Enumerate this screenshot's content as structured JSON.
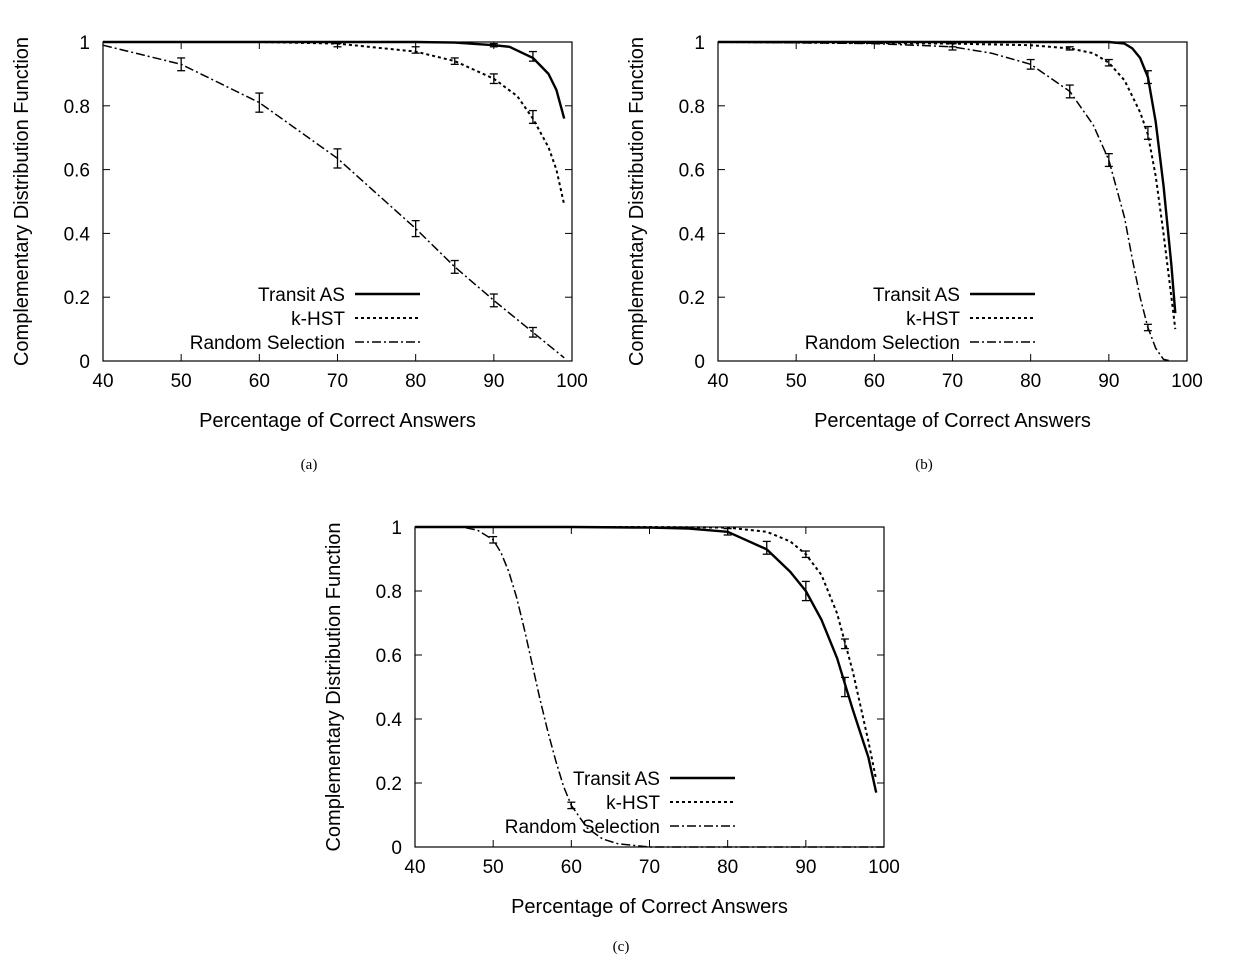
{
  "chart_data": [
    {
      "type": "line",
      "caption": "(a)",
      "xlabel": "Percentage of Correct Answers",
      "ylabel": "Complementary Distribution Function",
      "xlim": [
        40,
        100
      ],
      "ylim": [
        0,
        1
      ],
      "x_ticks": [
        "40",
        "50",
        "60",
        "70",
        "80",
        "90",
        "100"
      ],
      "y_ticks": [
        "0",
        "0.2",
        "0.4",
        "0.6",
        "0.8",
        "1"
      ],
      "grid": false,
      "legend_position": "bottom-right",
      "series": [
        {
          "name": "Transit AS",
          "style": "solid",
          "x": [
            40,
            60,
            80,
            85,
            90,
            92,
            95,
            97,
            98,
            99
          ],
          "y": [
            1,
            1,
            1,
            0.998,
            0.99,
            0.985,
            0.95,
            0.9,
            0.85,
            0.76
          ],
          "errorbars": [
            {
              "x": 90,
              "y": 0.99,
              "err": 0.005
            },
            {
              "x": 95,
              "y": 0.955,
              "err": 0.015
            }
          ]
        },
        {
          "name": "k-HST",
          "style": "dotted",
          "x": [
            40,
            60,
            70,
            80,
            85,
            90,
            93,
            95,
            97,
            98,
            99
          ],
          "y": [
            1,
            1,
            0.995,
            0.97,
            0.94,
            0.885,
            0.83,
            0.76,
            0.67,
            0.6,
            0.49
          ],
          "errorbars": [
            {
              "x": 70,
              "y": 0.99,
              "err": 0.005
            },
            {
              "x": 80,
              "y": 0.975,
              "err": 0.01
            },
            {
              "x": 85,
              "y": 0.94,
              "err": 0.01
            },
            {
              "x": 90,
              "y": 0.885,
              "err": 0.015
            },
            {
              "x": 95,
              "y": 0.765,
              "err": 0.02
            }
          ]
        },
        {
          "name": "Random Selection",
          "style": "dashdot",
          "x": [
            40,
            50,
            60,
            70,
            80,
            85,
            90,
            95,
            99
          ],
          "y": [
            0.99,
            0.93,
            0.81,
            0.635,
            0.415,
            0.295,
            0.19,
            0.09,
            0.01
          ],
          "errorbars": [
            {
              "x": 50,
              "y": 0.93,
              "err": 0.02
            },
            {
              "x": 60,
              "y": 0.81,
              "err": 0.03
            },
            {
              "x": 70,
              "y": 0.635,
              "err": 0.03
            },
            {
              "x": 80,
              "y": 0.415,
              "err": 0.025
            },
            {
              "x": 85,
              "y": 0.295,
              "err": 0.02
            },
            {
              "x": 90,
              "y": 0.19,
              "err": 0.02
            },
            {
              "x": 95,
              "y": 0.09,
              "err": 0.015
            }
          ]
        }
      ]
    },
    {
      "type": "line",
      "caption": "(b)",
      "xlabel": "Percentage of Correct Answers",
      "ylabel": "Complementary Distribution Function",
      "xlim": [
        40,
        100
      ],
      "ylim": [
        0,
        1
      ],
      "x_ticks": [
        "40",
        "50",
        "60",
        "70",
        "80",
        "90",
        "100"
      ],
      "y_ticks": [
        "0",
        "0.2",
        "0.4",
        "0.6",
        "0.8",
        "1"
      ],
      "grid": false,
      "legend_position": "bottom-right",
      "series": [
        {
          "name": "Transit AS",
          "style": "solid",
          "x": [
            40,
            80,
            90,
            92,
            93,
            94,
            95,
            96,
            97,
            98,
            98.5
          ],
          "y": [
            1,
            1,
            1,
            0.995,
            0.98,
            0.95,
            0.89,
            0.75,
            0.55,
            0.3,
            0.15
          ],
          "errorbars": [
            {
              "x": 95,
              "y": 0.89,
              "err": 0.02
            }
          ]
        },
        {
          "name": "k-HST",
          "style": "dotted",
          "x": [
            40,
            70,
            80,
            85,
            88,
            90,
            92,
            93,
            94,
            95,
            96,
            97,
            98,
            98.5
          ],
          "y": [
            1,
            0.995,
            0.99,
            0.98,
            0.965,
            0.935,
            0.88,
            0.83,
            0.78,
            0.71,
            0.58,
            0.4,
            0.2,
            0.1
          ],
          "errorbars": [
            {
              "x": 70,
              "y": 0.99,
              "err": 0.005
            },
            {
              "x": 85,
              "y": 0.98,
              "err": 0.005
            },
            {
              "x": 90,
              "y": 0.935,
              "err": 0.01
            },
            {
              "x": 95,
              "y": 0.715,
              "err": 0.02
            }
          ]
        },
        {
          "name": "Random Selection",
          "style": "dashdot",
          "x": [
            40,
            60,
            70,
            75,
            80,
            85,
            88,
            90,
            92,
            93,
            94,
            95,
            96,
            97,
            98
          ],
          "y": [
            1,
            0.995,
            0.985,
            0.965,
            0.93,
            0.845,
            0.74,
            0.63,
            0.45,
            0.32,
            0.2,
            0.105,
            0.04,
            0.005,
            0
          ],
          "errorbars": [
            {
              "x": 70,
              "y": 0.985,
              "err": 0.01
            },
            {
              "x": 80,
              "y": 0.93,
              "err": 0.015
            },
            {
              "x": 85,
              "y": 0.845,
              "err": 0.02
            },
            {
              "x": 90,
              "y": 0.63,
              "err": 0.02
            },
            {
              "x": 95,
              "y": 0.105,
              "err": 0.01
            }
          ]
        }
      ]
    },
    {
      "type": "line",
      "caption": "(c)",
      "xlabel": "Percentage of Correct Answers",
      "ylabel": "Complementary Distribution Function",
      "xlim": [
        40,
        100
      ],
      "ylim": [
        0,
        1
      ],
      "x_ticks": [
        "40",
        "50",
        "60",
        "70",
        "80",
        "90",
        "100"
      ],
      "y_ticks": [
        "0",
        "0.2",
        "0.4",
        "0.6",
        "0.8",
        "1"
      ],
      "grid": false,
      "legend_position": "bottom-center",
      "series": [
        {
          "name": "Transit AS",
          "style": "solid",
          "x": [
            40,
            60,
            70,
            75,
            80,
            85,
            88,
            90,
            92,
            94,
            95,
            96,
            98,
            99
          ],
          "y": [
            1,
            1,
            0.998,
            0.995,
            0.985,
            0.93,
            0.86,
            0.8,
            0.71,
            0.59,
            0.51,
            0.43,
            0.28,
            0.17
          ],
          "errorbars": [
            {
              "x": 80,
              "y": 0.985,
              "err": 0.01
            },
            {
              "x": 85,
              "y": 0.935,
              "err": 0.02
            },
            {
              "x": 90,
              "y": 0.8,
              "err": 0.03
            },
            {
              "x": 95,
              "y": 0.5,
              "err": 0.03
            }
          ]
        },
        {
          "name": "k-HST",
          "style": "dotted",
          "x": [
            40,
            70,
            80,
            85,
            88,
            90,
            92,
            94,
            95,
            96,
            98,
            99
          ],
          "y": [
            1,
            1,
            0.998,
            0.985,
            0.955,
            0.915,
            0.85,
            0.73,
            0.64,
            0.55,
            0.33,
            0.21
          ],
          "errorbars": [
            {
              "x": 90,
              "y": 0.915,
              "err": 0.01
            },
            {
              "x": 95,
              "y": 0.635,
              "err": 0.015
            }
          ]
        },
        {
          "name": "Random Selection",
          "style": "dashdot",
          "x": [
            40,
            46,
            48,
            50,
            51,
            52,
            53,
            54,
            55,
            56,
            57,
            58,
            59,
            60,
            62,
            64,
            66,
            70,
            100
          ],
          "y": [
            1,
            1,
            0.99,
            0.96,
            0.92,
            0.86,
            0.78,
            0.68,
            0.57,
            0.46,
            0.36,
            0.27,
            0.19,
            0.13,
            0.06,
            0.025,
            0.01,
            0,
            0
          ],
          "errorbars": [
            {
              "x": 50,
              "y": 0.96,
              "err": 0.01
            },
            {
              "x": 60,
              "y": 0.13,
              "err": 0.01
            }
          ]
        }
      ]
    }
  ]
}
